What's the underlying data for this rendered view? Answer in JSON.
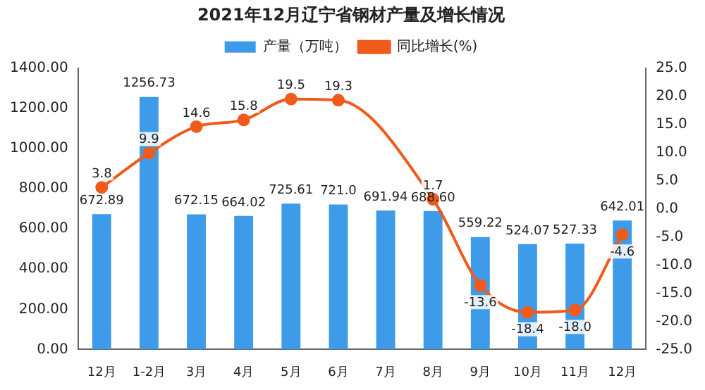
{
  "chart_data": {
    "type": "bar",
    "title": "2021年12月辽宁省钢材产量及增长情况",
    "categories": [
      "12月",
      "1-2月",
      "3月",
      "4月",
      "5月",
      "6月",
      "7月",
      "8月",
      "9月",
      "10月",
      "11月",
      "12月"
    ],
    "series": [
      {
        "name": "产量（万吨）",
        "color": "#3d9be9",
        "values": [
          672.89,
          1256.73,
          672.15,
          664.02,
          725.61,
          721.0,
          691.94,
          688.6,
          559.22,
          524.07,
          527.33,
          642.01
        ],
        "value_labels": [
          "672.89",
          "1256.73",
          "672.15",
          "664.02",
          "725.61",
          "721.0",
          "691.94",
          "688.60",
          "559.22",
          "524.07",
          "527.33",
          "642.01"
        ]
      },
      {
        "name": "同比增长(%)",
        "type": "line",
        "axis": "y2",
        "color": "#f05a1a",
        "values": [
          3.8,
          9.9,
          14.6,
          15.8,
          19.5,
          19.3,
          null,
          1.7,
          -13.6,
          -18.4,
          -18.0,
          -4.6
        ],
        "value_labels": [
          "3.8",
          "9.9",
          "14.6",
          "15.8",
          "19.5",
          "19.3",
          null,
          "1.7",
          "-13.6",
          "-18.4",
          "-18.0",
          "-4.6"
        ]
      }
    ],
    "ylim": [
      0,
      1400
    ],
    "yticks": [
      {
        "value": 0,
        "label": "0.00"
      },
      {
        "value": 200,
        "label": "200.00"
      },
      {
        "value": 400,
        "label": "400.00"
      },
      {
        "value": 600,
        "label": "600.00"
      },
      {
        "value": 800,
        "label": "800.00"
      },
      {
        "value": 1000,
        "label": "1000.00"
      },
      {
        "value": 1200,
        "label": "1200.00"
      },
      {
        "value": 1400,
        "label": "1400.00"
      }
    ],
    "y2lim": [
      -25,
      25
    ],
    "y2ticks": [
      {
        "value": -25,
        "label": "-25.0"
      },
      {
        "value": -20,
        "label": "-20.0"
      },
      {
        "value": -15,
        "label": "-15.0"
      },
      {
        "value": -10,
        "label": "-10.0"
      },
      {
        "value": -5,
        "label": "-5.0"
      },
      {
        "value": 0,
        "label": "0.0"
      },
      {
        "value": 5,
        "label": "5.0"
      },
      {
        "value": 10,
        "label": "10.0"
      },
      {
        "value": 15,
        "label": "15.0"
      },
      {
        "value": 20,
        "label": "20.0"
      },
      {
        "value": 25,
        "label": "25.0"
      }
    ],
    "legend": "top",
    "grid": false,
    "marker": "circle"
  }
}
